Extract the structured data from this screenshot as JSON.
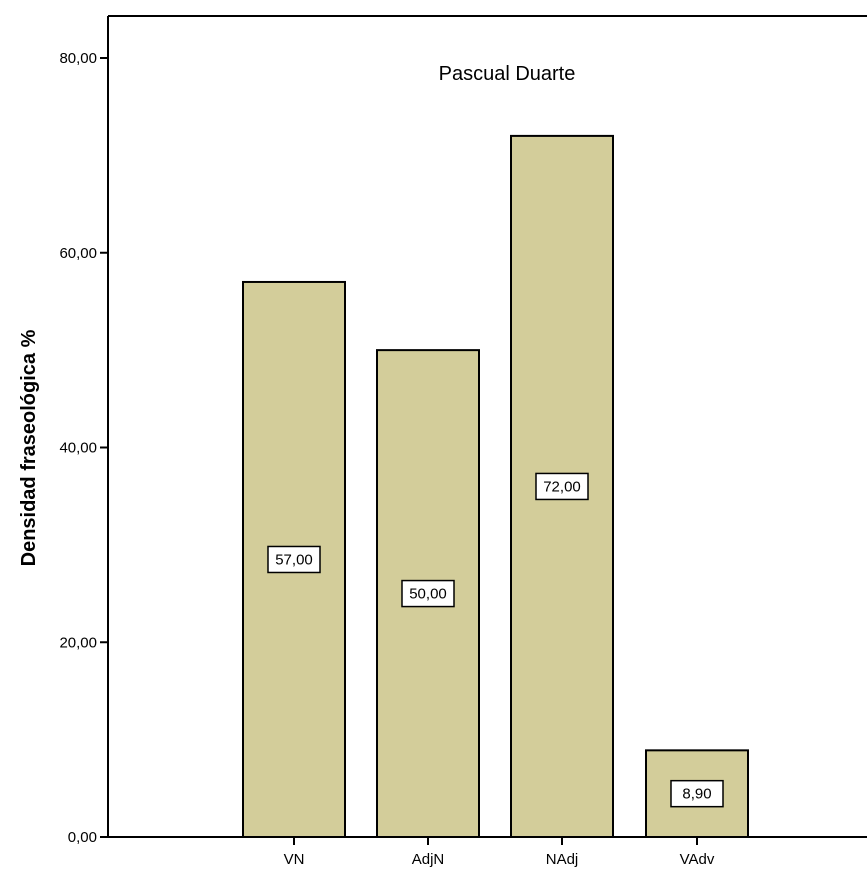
{
  "chart_data": {
    "type": "bar",
    "title": "Pascual Duarte",
    "ylabel": "Densidad fraseológica %",
    "xlabel": "",
    "categories": [
      "VN",
      "AdjN",
      "NAdj",
      "VAdv"
    ],
    "values": [
      57.0,
      50.0,
      72.0,
      8.9
    ],
    "data_labels": [
      "57,00",
      "50,00",
      "72,00",
      "8,90"
    ],
    "ylim": [
      0,
      80
    ],
    "y_ticks": [
      {
        "value": 0,
        "label": "0,00"
      },
      {
        "value": 20,
        "label": "20,00"
      },
      {
        "value": 40,
        "label": "40,00"
      },
      {
        "value": 60,
        "label": "60,00"
      },
      {
        "value": 80,
        "label": "80,00"
      }
    ],
    "grid": false,
    "colors": {
      "bar_fill": "#d3cd9a",
      "bar_stroke": "#000000",
      "axis": "#000000",
      "label_box_fill": "#ffffff"
    }
  }
}
